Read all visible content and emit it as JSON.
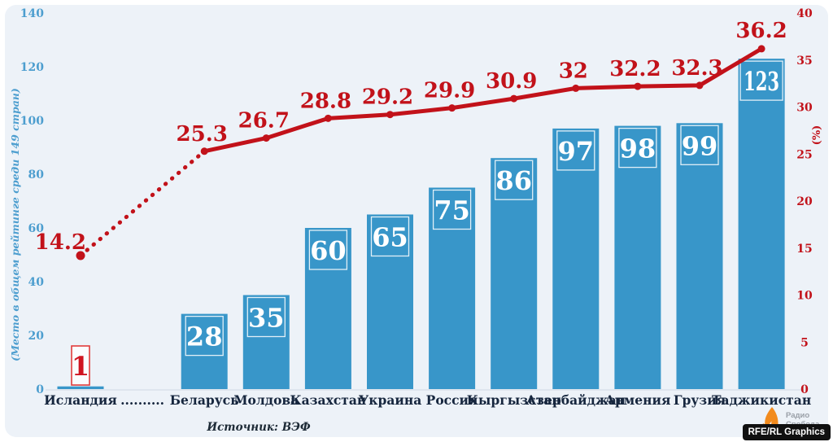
{
  "chart_data": {
    "type": "bar+line",
    "title": "",
    "categories": [
      "Исландия",
      "..........",
      "Беларусь",
      "Молдова",
      "Казахстан",
      "Украина",
      "Россия",
      "Кыргызстан",
      "Азербайджан",
      "Армения",
      "Грузия",
      "Таджикистан"
    ],
    "bar_series": {
      "name": "Место в общем рейтинге",
      "axis": "left",
      "values": [
        1,
        null,
        28,
        35,
        60,
        65,
        75,
        86,
        97,
        98,
        99,
        123
      ],
      "highlight_index": 0
    },
    "line_series": {
      "name": "Процент (%)",
      "axis": "right",
      "values": [
        14.2,
        null,
        25.3,
        26.7,
        28.8,
        29.2,
        29.9,
        30.9,
        32,
        32.2,
        32.3,
        36.2
      ],
      "dotted_segment": [
        0,
        2
      ]
    },
    "left_axis": {
      "label": "(Место в общем рейтинге среди 149 стран)",
      "ticks": [
        0,
        20,
        40,
        60,
        80,
        100,
        120,
        140
      ],
      "range": [
        0,
        140
      ]
    },
    "right_axis": {
      "label": "(%)",
      "ticks": [
        0,
        5,
        10,
        15,
        20,
        25,
        30,
        35,
        40
      ],
      "range": [
        0,
        40
      ]
    },
    "grid": false,
    "legend": false,
    "colors": {
      "bar": "#3896c9",
      "bar_box_stroke": "#ffffff",
      "line": "#c2121a",
      "left_ticks": "#4d9ecf",
      "right_ticks": "#c2121a",
      "categories": "#16263e",
      "background": "#edf2f8",
      "highlight_text": "#cf1420",
      "highlight_box": "#e23b3b",
      "baseline": "#dee5ee"
    }
  },
  "footer": {
    "source": "Источник: ВЭФ",
    "logo": {
      "line1": "Радио",
      "line2": "Свобода",
      "icon": "rferl-torch-icon",
      "color": "#f28b1e"
    },
    "credit": "RFE/RL Graphics"
  }
}
